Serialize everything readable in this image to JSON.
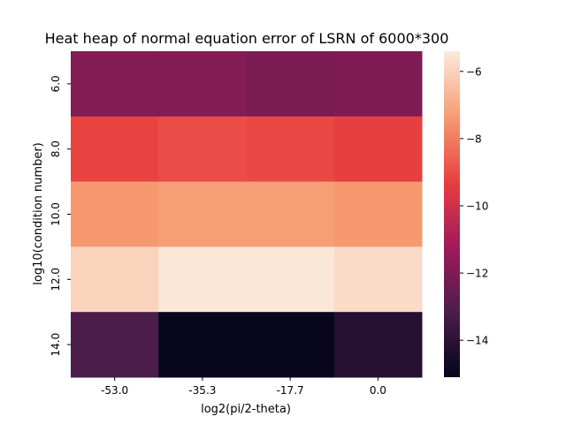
{
  "chart_data": {
    "type": "heatmap",
    "title": "Heat heap of normal equation error of LSRN of 6000*300",
    "xlabel": "log2(pi/2-theta)",
    "ylabel": "log10(condition number)",
    "x_categories": [
      "-53.0",
      "-35.3",
      "-17.7",
      "0.0"
    ],
    "y_categories": [
      "6.0",
      "8.0",
      "10.0",
      "12.0",
      "14.0"
    ],
    "values": [
      [
        -11.9,
        -11.9,
        -12.1,
        -12.0
      ],
      [
        -9.2,
        -9.0,
        -9.1,
        -9.3
      ],
      [
        -7.4,
        -7.3,
        -7.3,
        -7.4
      ],
      [
        -6.0,
        -5.5,
        -5.5,
        -5.8
      ],
      [
        -13.2,
        -15.0,
        -15.0,
        -14.2
      ]
    ],
    "colorbar": {
      "range": [
        -15.1,
        -5.4
      ],
      "ticks": [
        -14,
        -12,
        -10,
        -8,
        -6
      ],
      "tick_labels": [
        "−14",
        "−12",
        "−10",
        "−8",
        "−6"
      ]
    },
    "colormap": [
      "#03051a",
      "#4c1d4b",
      "#a11a5b",
      "#e83f3f",
      "#f69c73",
      "#faebdd"
    ]
  }
}
